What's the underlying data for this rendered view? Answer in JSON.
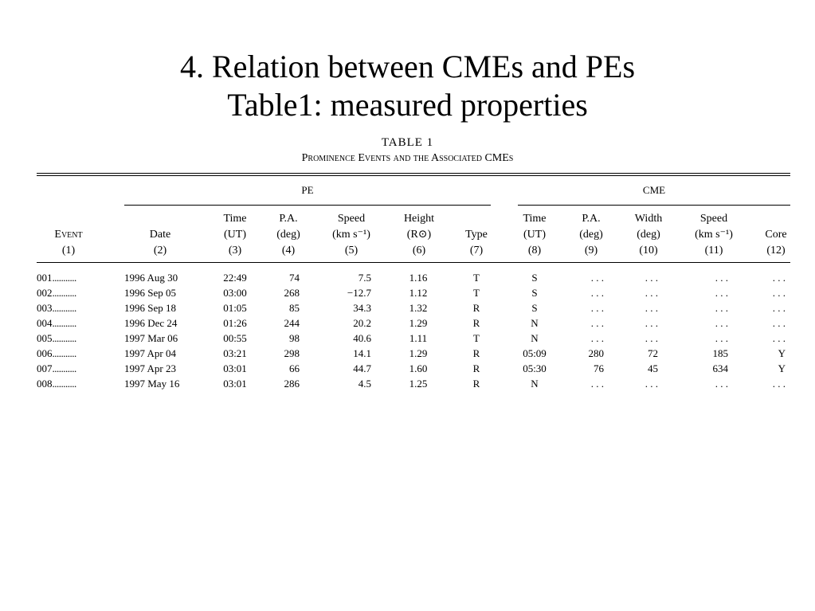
{
  "slide": {
    "title_line1": "4. Relation between CMEs and PEs",
    "title_line2": "Table1: measured properties"
  },
  "table": {
    "label": "TABLE 1",
    "subtitle": "Prominence Events and the Associated CMEs",
    "group_pe": "PE",
    "group_cme": "CME",
    "headers": [
      {
        "l1": "",
        "l2": "Event",
        "l3": "(1)"
      },
      {
        "l1": "",
        "l2": "Date",
        "l3": "(2)"
      },
      {
        "l1": "Time",
        "l2": "(UT)",
        "l3": "(3)"
      },
      {
        "l1": "P.A.",
        "l2": "(deg)",
        "l3": "(4)"
      },
      {
        "l1": "Speed",
        "l2": "(km s⁻¹)",
        "l3": "(5)"
      },
      {
        "l1": "Height",
        "l2": "(R⊙)",
        "l3": "(6)"
      },
      {
        "l1": "",
        "l2": "Type",
        "l3": "(7)"
      },
      {
        "l1": "Time",
        "l2": "(UT)",
        "l3": "(8)"
      },
      {
        "l1": "P.A.",
        "l2": "(deg)",
        "l3": "(9)"
      },
      {
        "l1": "Width",
        "l2": "(deg)",
        "l3": "(10)"
      },
      {
        "l1": "Speed",
        "l2": "(km s⁻¹)",
        "l3": "(11)"
      },
      {
        "l1": "",
        "l2": "Core",
        "l3": "(12)"
      }
    ],
    "rows": [
      [
        "001",
        "1996 Aug 30",
        "22:49",
        "74",
        "7.5",
        "1.16",
        "T",
        "S",
        ". . .",
        ". . .",
        ". . .",
        ". . ."
      ],
      [
        "002",
        "1996 Sep 05",
        "03:00",
        "268",
        "−12.7",
        "1.12",
        "T",
        "S",
        ". . .",
        ". . .",
        ". . .",
        ". . ."
      ],
      [
        "003",
        "1996 Sep 18",
        "01:05",
        "85",
        "34.3",
        "1.32",
        "R",
        "S",
        ". . .",
        ". . .",
        ". . .",
        ". . ."
      ],
      [
        "004",
        "1996 Dec 24",
        "01:26",
        "244",
        "20.2",
        "1.29",
        "R",
        "N",
        ". . .",
        ". . .",
        ". . .",
        ". . ."
      ],
      [
        "005",
        "1997 Mar 06",
        "00:55",
        "98",
        "40.6",
        "1.11",
        "T",
        "N",
        ". . .",
        ". . .",
        ". . .",
        ". . ."
      ],
      [
        "006",
        "1997 Apr 04",
        "03:21",
        "298",
        "14.1",
        "1.29",
        "R",
        "05:09",
        "280",
        "72",
        "185",
        "Y"
      ],
      [
        "007",
        "1997 Apr 23",
        "03:01",
        "66",
        "44.7",
        "1.60",
        "R",
        "05:30",
        "76",
        "45",
        "634",
        "Y"
      ],
      [
        "008",
        "1997 May 16",
        "03:01",
        "286",
        "4.5",
        "1.25",
        "R",
        "N",
        ". . .",
        ". . .",
        ". . .",
        ". . ."
      ]
    ],
    "leader": "..........."
  }
}
